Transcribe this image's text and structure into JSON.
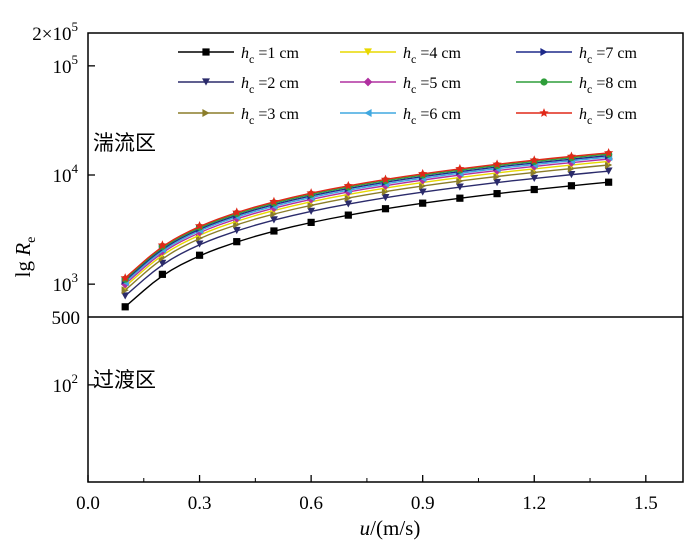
{
  "chart_data": {
    "type": "line",
    "xlabel_main": "u",
    "xlabel_unit": "/(m/s)",
    "ylabel_main": "lg ",
    "ylabel_var": "R",
    "ylabel_sub": "e",
    "xlim": [
      0,
      1.6
    ],
    "ylim": [
      10,
      200000
    ],
    "y_scale": "log",
    "x_ticks": [
      {
        "value": 0.0,
        "label": "0.0"
      },
      {
        "value": 0.3,
        "label": "0.3"
      },
      {
        "value": 0.6,
        "label": "0.6"
      },
      {
        "value": 0.9,
        "label": "0.9"
      },
      {
        "value": 1.2,
        "label": "1.2"
      },
      {
        "value": 1.5,
        "label": "1.5"
      }
    ],
    "y_ticks": [
      {
        "value": 100,
        "base": "10",
        "exp": "2"
      },
      {
        "value": 1000,
        "base": "10",
        "exp": "3"
      },
      {
        "value": 10000,
        "base": "10",
        "exp": "4"
      },
      {
        "value": 100000,
        "base": "10",
        "exp": "5"
      }
    ],
    "y_top_label": {
      "value": 200000,
      "base": "2×10",
      "exp": "5"
    },
    "threshold": {
      "value": 500,
      "label": "500"
    },
    "regions": {
      "upper": "湍流区",
      "lower": "过渡区"
    },
    "legend_position": "top",
    "x": [
      0.1,
      0.2,
      0.3,
      0.4,
      0.5,
      0.6,
      0.7,
      0.8,
      0.9,
      1.0,
      1.1,
      1.2,
      1.3,
      1.4
    ],
    "series": [
      {
        "name_var": "h",
        "name_sub": "c",
        "name_val": "=1 cm",
        "color": "#000000",
        "marker": "square",
        "values": [
          620,
          1230,
          1840,
          2450,
          3070,
          3680,
          4290,
          4910,
          5520,
          6130,
          6750,
          7360,
          7970,
          8590
        ]
      },
      {
        "name_var": "h",
        "name_sub": "c",
        "name_val": "=2 cm",
        "color": "#2b2b6b",
        "marker": "triangle-down",
        "values": [
          780,
          1550,
          2330,
          3100,
          3880,
          4650,
          5430,
          6200,
          6980,
          7750,
          8530,
          9300,
          10080,
          10850
        ]
      },
      {
        "name_var": "h",
        "name_sub": "c",
        "name_val": "=3 cm",
        "color": "#8b7d2a",
        "marker": "triangle-right",
        "values": [
          880,
          1760,
          2650,
          3530,
          4410,
          5290,
          6170,
          7060,
          7940,
          8820,
          9700,
          10580,
          11470,
          12350
        ]
      },
      {
        "name_var": "h",
        "name_sub": "c",
        "name_val": "=4 cm",
        "color": "#e8d800",
        "marker": "triangle-down",
        "values": [
          950,
          1900,
          2850,
          3800,
          4750,
          5700,
          6650,
          7600,
          8550,
          9500,
          10450,
          11400,
          12350,
          13300
        ]
      },
      {
        "name_var": "h",
        "name_sub": "c",
        "name_val": "=5 cm",
        "color": "#b030a0",
        "marker": "diamond",
        "values": [
          1000,
          2000,
          3000,
          4000,
          5000,
          6000,
          7000,
          8000,
          9000,
          10000,
          11000,
          12000,
          13000,
          14000
        ]
      },
      {
        "name_var": "h",
        "name_sub": "c",
        "name_val": "=6 cm",
        "color": "#40a8e0",
        "marker": "triangle-left",
        "values": [
          1040,
          2080,
          3120,
          4160,
          5200,
          6240,
          7280,
          8320,
          9360,
          10400,
          11440,
          12480,
          13520,
          14560
        ]
      },
      {
        "name_var": "h",
        "name_sub": "c",
        "name_val": "=7 cm",
        "color": "#1e2a8a",
        "marker": "triangle-right",
        "values": [
          1080,
          2150,
          3230,
          4300,
          5380,
          6450,
          7530,
          8600,
          9680,
          10750,
          11830,
          12900,
          13980,
          15050
        ]
      },
      {
        "name_var": "h",
        "name_sub": "c",
        "name_val": "=8 cm",
        "color": "#2e9e3a",
        "marker": "circle",
        "values": [
          1110,
          2220,
          3330,
          4440,
          5550,
          6660,
          7770,
          8880,
          9990,
          11100,
          12210,
          13320,
          14430,
          15540
        ]
      },
      {
        "name_var": "h",
        "name_sub": "c",
        "name_val": "=9 cm",
        "color": "#e02818",
        "marker": "star",
        "values": [
          1140,
          2280,
          3420,
          4560,
          5700,
          6840,
          7980,
          9120,
          10260,
          11400,
          12540,
          13680,
          14820,
          15960
        ]
      }
    ]
  }
}
